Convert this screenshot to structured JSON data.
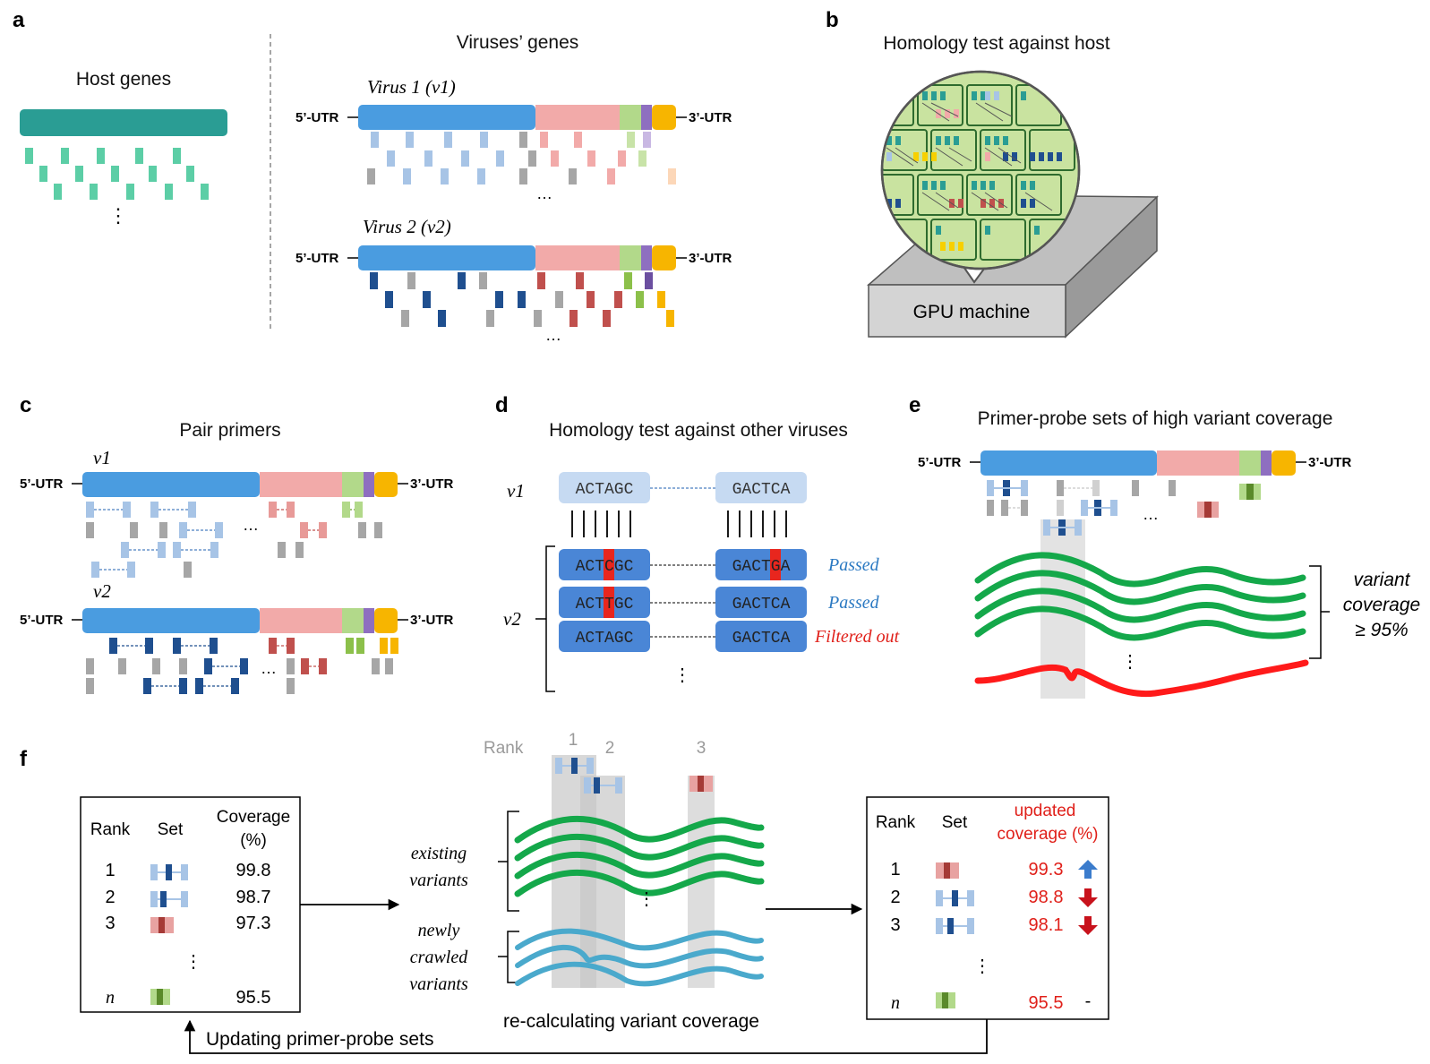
{
  "panels": {
    "a": {
      "letter": "a",
      "host_title": "Host genes",
      "virus_title": "Viruses’ genes",
      "v1_name": "Virus 1 (v1)",
      "v2_name": "Virus 2 (v2)",
      "utr5": "5’-UTR",
      "utr3": "3’-UTR",
      "ellipsis": "…",
      "vdots": "⋮"
    },
    "b": {
      "letter": "b",
      "title": "Homology test against host",
      "gpu_label": "GPU machine"
    },
    "c": {
      "letter": "c",
      "title": "Pair primers",
      "v1": "v1",
      "v2": "v2",
      "utr5": "5’-UTR",
      "utr3": "3’-UTR",
      "ellipsis": "…"
    },
    "d": {
      "letter": "d",
      "title": "Homology test against other viruses",
      "v1": "v1",
      "v2": "v2",
      "ref_left": "ACTAGC",
      "ref_right": "GACTCA",
      "rows": [
        {
          "left": "ACTCGC",
          "right": "GACTGA",
          "status": "Passed"
        },
        {
          "left": "ACTTGC",
          "right": "GACTCA",
          "status": "Passed"
        },
        {
          "left": "ACTAGC",
          "right": "GACTCA",
          "status": "Filtered out"
        }
      ],
      "vdots": "⋮"
    },
    "e": {
      "letter": "e",
      "title": "Primer-probe sets of high variant coverage",
      "utr5": "5’-UTR",
      "utr3": "3’-UTR",
      "coverage_line1": "variant",
      "coverage_line2": "coverage",
      "coverage_line3": "≥ 95%",
      "ellipsis": "…",
      "vdots": "⋮"
    },
    "f": {
      "letter": "f",
      "left_table": {
        "headers": [
          "Rank",
          "Set",
          "Coverage",
          "(%)"
        ],
        "rows": [
          {
            "rank": "1",
            "coverage": "99.8"
          },
          {
            "rank": "2",
            "coverage": "98.7"
          },
          {
            "rank": "3",
            "coverage": "97.3"
          },
          {
            "rank": "n",
            "coverage": "95.5"
          }
        ]
      },
      "rank_label": "Rank",
      "rank_numbers": [
        "1",
        "2",
        "3"
      ],
      "existing_variants": [
        "existing",
        "variants"
      ],
      "new_variants": [
        "newly",
        "crawled",
        "variants"
      ],
      "recalc_label": "re-calculating variant coverage",
      "right_table": {
        "headers": [
          "Rank",
          "Set",
          "updated",
          "coverage (%)"
        ],
        "rows": [
          {
            "rank": "1",
            "coverage": "99.3",
            "trend": "up"
          },
          {
            "rank": "2",
            "coverage": "98.8",
            "trend": "down"
          },
          {
            "rank": "3",
            "coverage": "98.1",
            "trend": "down"
          },
          {
            "rank": "n",
            "coverage": "95.5",
            "trend": "-"
          }
        ]
      },
      "update_label": "Updating primer-probe sets",
      "vdots": "⋮"
    }
  },
  "colors": {
    "teal": "#2a9d94",
    "blue": "#4a9ce0",
    "pink": "#f2aaa9",
    "green_light": "#b2d98a",
    "purple": "#8e6fc0",
    "yellow": "#f7b500",
    "dark_blue": "#1f4f8f",
    "light_blue": "#a7c4e6",
    "gray": "#a6a6a6",
    "red": "#e8261e",
    "green_wave": "#14a84a",
    "cyan_wave": "#4aa9cc",
    "pass_blue": "#2b79c2"
  }
}
